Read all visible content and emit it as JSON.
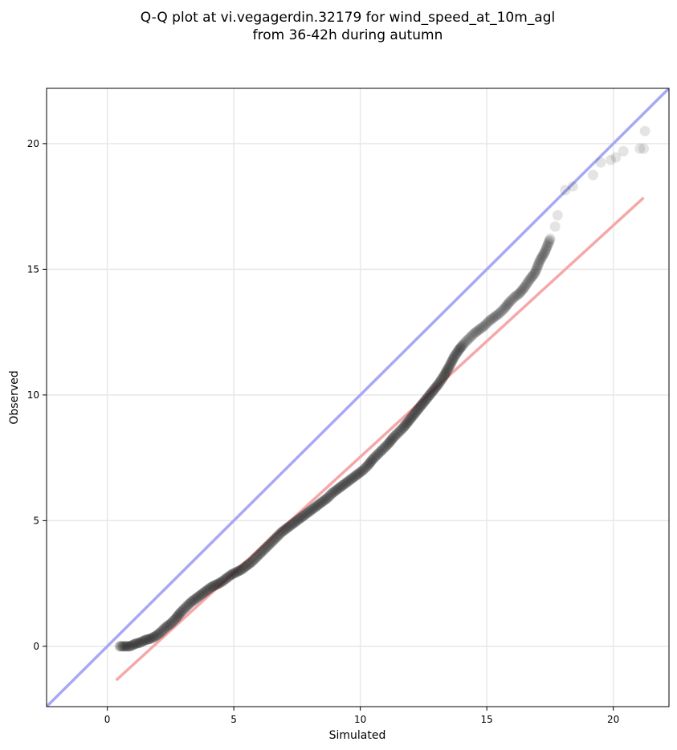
{
  "chart_data": {
    "type": "scatter",
    "title_line1": "Q-Q plot at vi.vegagerdin.32179 for wind_speed_at_10m_agl",
    "title_line2": "from 36-42h during autumn",
    "xlabel": "Simulated",
    "ylabel": "Observed",
    "xlim": [
      -2.4,
      22.2
    ],
    "ylim": [
      -2.4,
      22.2
    ],
    "xticks": [
      0,
      5,
      10,
      15,
      20
    ],
    "yticks": [
      0,
      5,
      10,
      15,
      20
    ],
    "xtick_labels": [
      "0",
      "5",
      "10",
      "15",
      "20"
    ],
    "ytick_labels": [
      "0",
      "5",
      "10",
      "15",
      "20"
    ],
    "grid": true,
    "identity_line": {
      "color": "#a8a8f5",
      "x": [
        -2.4,
        22.2
      ],
      "y": [
        -2.4,
        22.2
      ]
    },
    "fit_line": {
      "color": "#f5a8a8",
      "x": [
        0.35,
        21.2
      ],
      "y": [
        -1.35,
        17.85
      ]
    },
    "points_color": "#222222",
    "quantiles": [
      [
        0.5,
        0.0
      ],
      [
        0.7,
        0.0
      ],
      [
        0.9,
        0.0
      ],
      [
        1.1,
        0.1
      ],
      [
        1.3,
        0.15
      ],
      [
        1.5,
        0.25
      ],
      [
        1.7,
        0.3
      ],
      [
        1.9,
        0.4
      ],
      [
        2.1,
        0.55
      ],
      [
        2.3,
        0.75
      ],
      [
        2.5,
        0.9
      ],
      [
        2.7,
        1.1
      ],
      [
        2.9,
        1.35
      ],
      [
        3.1,
        1.55
      ],
      [
        3.3,
        1.75
      ],
      [
        3.5,
        1.9
      ],
      [
        3.7,
        2.05
      ],
      [
        3.9,
        2.2
      ],
      [
        4.1,
        2.35
      ],
      [
        4.3,
        2.45
      ],
      [
        4.5,
        2.55
      ],
      [
        4.7,
        2.7
      ],
      [
        4.9,
        2.85
      ],
      [
        5.1,
        2.95
      ],
      [
        5.3,
        3.05
      ],
      [
        5.5,
        3.2
      ],
      [
        5.7,
        3.35
      ],
      [
        5.9,
        3.55
      ],
      [
        6.1,
        3.75
      ],
      [
        6.3,
        3.95
      ],
      [
        6.5,
        4.15
      ],
      [
        6.7,
        4.35
      ],
      [
        6.9,
        4.55
      ],
      [
        7.1,
        4.7
      ],
      [
        7.3,
        4.85
      ],
      [
        7.5,
        5.0
      ],
      [
        7.7,
        5.15
      ],
      [
        7.9,
        5.3
      ],
      [
        8.1,
        5.45
      ],
      [
        8.3,
        5.6
      ],
      [
        8.5,
        5.75
      ],
      [
        8.7,
        5.9
      ],
      [
        8.9,
        6.1
      ],
      [
        9.1,
        6.25
      ],
      [
        9.3,
        6.4
      ],
      [
        9.5,
        6.55
      ],
      [
        9.7,
        6.7
      ],
      [
        9.9,
        6.85
      ],
      [
        10.1,
        7.0
      ],
      [
        10.3,
        7.2
      ],
      [
        10.5,
        7.45
      ],
      [
        10.7,
        7.65
      ],
      [
        10.9,
        7.85
      ],
      [
        11.1,
        8.05
      ],
      [
        11.3,
        8.3
      ],
      [
        11.5,
        8.5
      ],
      [
        11.7,
        8.7
      ],
      [
        11.9,
        8.95
      ],
      [
        12.1,
        9.2
      ],
      [
        12.3,
        9.45
      ],
      [
        12.5,
        9.7
      ],
      [
        12.7,
        9.95
      ],
      [
        12.9,
        10.2
      ],
      [
        13.1,
        10.45
      ],
      [
        13.3,
        10.75
      ],
      [
        13.5,
        11.1
      ],
      [
        13.7,
        11.5
      ],
      [
        13.9,
        11.8
      ],
      [
        14.1,
        12.05
      ],
      [
        14.3,
        12.25
      ],
      [
        14.5,
        12.45
      ],
      [
        14.7,
        12.6
      ],
      [
        14.9,
        12.75
      ],
      [
        15.1,
        12.95
      ],
      [
        15.3,
        13.1
      ],
      [
        15.5,
        13.25
      ],
      [
        15.7,
        13.45
      ],
      [
        15.9,
        13.7
      ],
      [
        16.1,
        13.9
      ],
      [
        16.3,
        14.05
      ],
      [
        16.5,
        14.3
      ],
      [
        16.7,
        14.6
      ],
      [
        16.9,
        14.85
      ],
      [
        17.1,
        15.35
      ],
      [
        17.3,
        15.7
      ],
      [
        17.5,
        16.2
      ],
      [
        17.7,
        16.7
      ],
      [
        17.8,
        17.15
      ],
      [
        18.1,
        18.15
      ],
      [
        18.4,
        18.3
      ],
      [
        19.2,
        18.75
      ],
      [
        19.5,
        19.25
      ],
      [
        19.9,
        19.35
      ],
      [
        20.1,
        19.45
      ],
      [
        20.4,
        19.7
      ],
      [
        21.05,
        19.8
      ],
      [
        21.2,
        19.8
      ],
      [
        21.25,
        20.5
      ]
    ]
  }
}
